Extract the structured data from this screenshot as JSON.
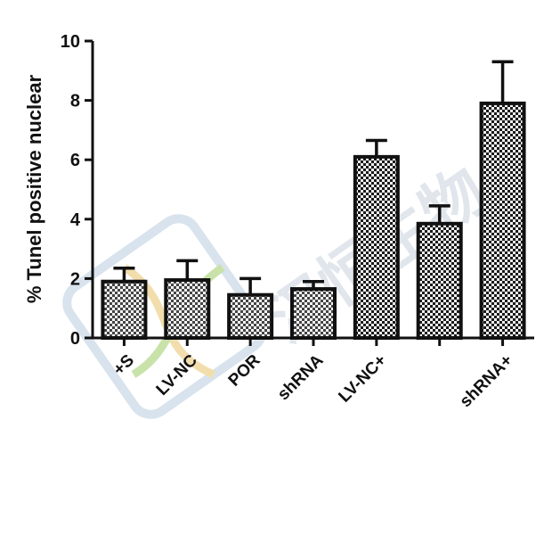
{
  "chart_data": {
    "type": "bar",
    "title": "",
    "xlabel": "",
    "ylabel": "% Tunel positive nuclear",
    "ylim": [
      0,
      10
    ],
    "yticks": [
      0,
      2,
      4,
      6,
      8,
      10
    ],
    "grid": false,
    "legend": "none",
    "categories": [
      "+S",
      "LV-NC",
      "POR",
      "shRNA",
      "LV-NC+",
      "",
      "shRNA+"
    ],
    "values": [
      1.9,
      1.95,
      1.45,
      1.65,
      6.1,
      3.85,
      7.9
    ],
    "errors": [
      0.45,
      0.65,
      0.55,
      0.25,
      0.55,
      0.6,
      1.4
    ],
    "patterns": [
      "light-check",
      "light-check",
      "light-check",
      "light-check",
      "dark-check",
      "dark-check",
      "dark-check"
    ],
    "colors": {
      "bar_stroke": "#111111",
      "axis": "#111111",
      "check_dark": "#1a1a1a",
      "check_light": "#f4f4f4"
    }
  },
  "watermark": {
    "text": "汉恒生物"
  }
}
